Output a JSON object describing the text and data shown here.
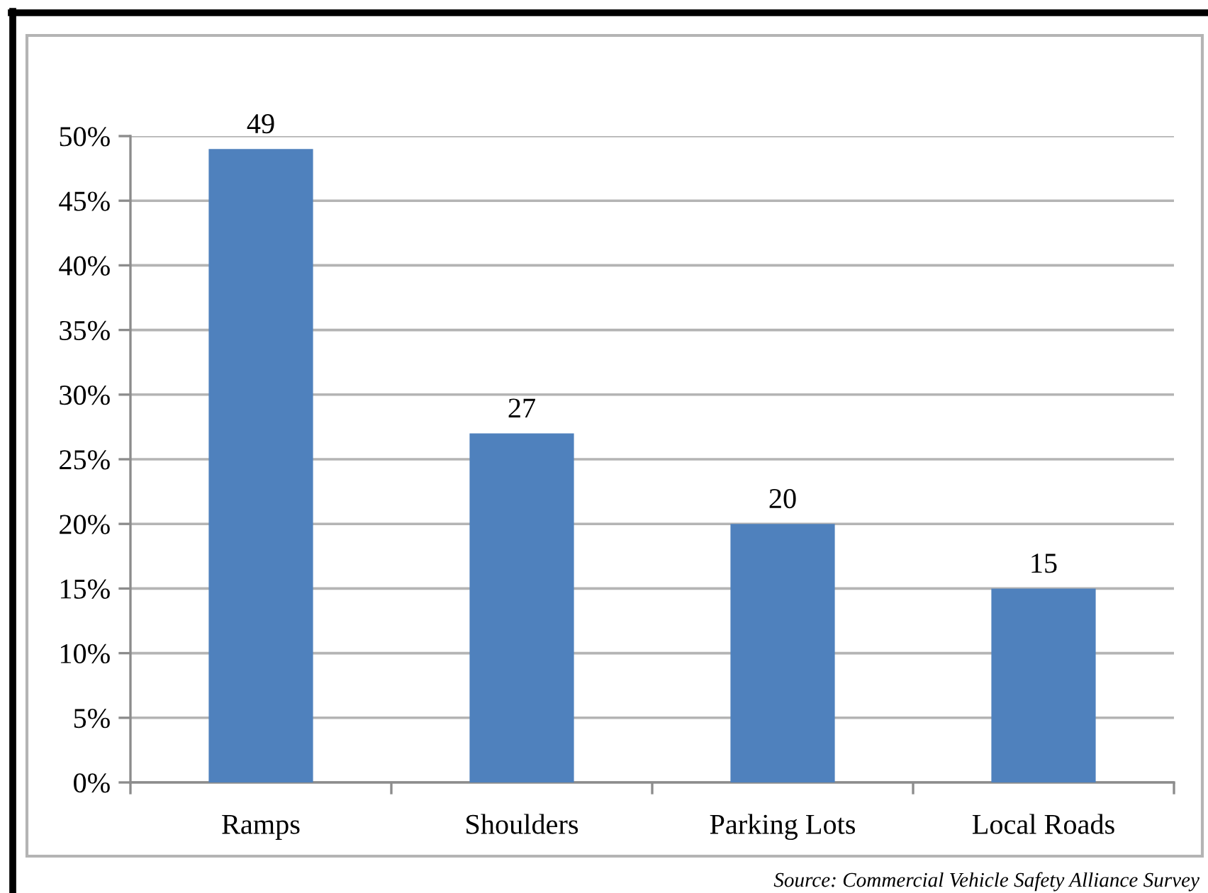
{
  "chart_data": {
    "type": "bar",
    "categories": [
      "Ramps",
      "Shoulders",
      "Parking Lots",
      "Local Roads"
    ],
    "values": [
      49,
      27,
      20,
      15
    ],
    "color": "#4f81bd",
    "ylim": [
      0,
      50
    ],
    "yticks": [
      {
        "value": 0,
        "label": "0%"
      },
      {
        "value": 5,
        "label": "5%"
      },
      {
        "value": 10,
        "label": "10%"
      },
      {
        "value": 15,
        "label": "15%"
      },
      {
        "value": 20,
        "label": "20%"
      },
      {
        "value": 25,
        "label": "25%"
      },
      {
        "value": 30,
        "label": "30%"
      },
      {
        "value": 35,
        "label": "35%"
      },
      {
        "value": 40,
        "label": "40%"
      },
      {
        "value": 45,
        "label": "45%"
      },
      {
        "value": 50,
        "label": "50%"
      }
    ],
    "grid": "y",
    "legend": false,
    "data_labels": true,
    "annotations": [
      "Source: Commercial Vehicle Safety Alliance Survey"
    ]
  }
}
